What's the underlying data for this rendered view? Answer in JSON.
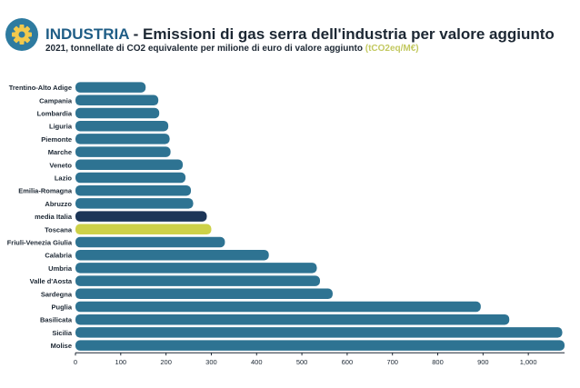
{
  "header": {
    "icon": "gear-icon",
    "icon_color": "#2e7ba0",
    "title_keyword": "INDUSTRIA",
    "title_rest": " - Emissioni di gas serra dell'industria per valore aggiunto",
    "subtitle_text": "2021, tonnellate di CO2 equivalente per milione di euro di valore aggiunto ",
    "subtitle_unit": "(tCO2eq/M€)"
  },
  "chart_data": {
    "type": "bar",
    "orientation": "horizontal",
    "categories": [
      "Trentino-Alto Adige",
      "Campania",
      "Lombardia",
      "Liguria",
      "Piemonte",
      "Marche",
      "Veneto",
      "Lazio",
      "Emilia-Romagna",
      "Abruzzo",
      "media Italia",
      "Toscana",
      "Friuli-Venezia Giulia",
      "Calabria",
      "Umbria",
      "Valle d'Aosta",
      "Sardegna",
      "Puglia",
      "Basilicata",
      "Sicilia",
      "Molise"
    ],
    "values": [
      155,
      183,
      185,
      205,
      208,
      210,
      237,
      243,
      255,
      260,
      290,
      300,
      330,
      427,
      533,
      540,
      568,
      895,
      958,
      1075,
      1080
    ],
    "bar_colors": [
      "#2e7392",
      "#2e7392",
      "#2e7392",
      "#2e7392",
      "#2e7392",
      "#2e7392",
      "#2e7392",
      "#2e7392",
      "#2e7392",
      "#2e7392",
      "#1c3557",
      "#cdd148",
      "#2e7392",
      "#2e7392",
      "#2e7392",
      "#2e7392",
      "#2e7392",
      "#2e7392",
      "#2e7392",
      "#2e7392",
      "#2e7392"
    ],
    "x_ticks": [
      0,
      100,
      200,
      300,
      400,
      500,
      600,
      700,
      800,
      900,
      1000
    ],
    "x_tick_labels": [
      "0",
      "100",
      "200",
      "300",
      "400",
      "500",
      "600",
      "700",
      "800",
      "900",
      "1,000"
    ],
    "xlim": [
      0,
      1080
    ],
    "grid": false
  }
}
